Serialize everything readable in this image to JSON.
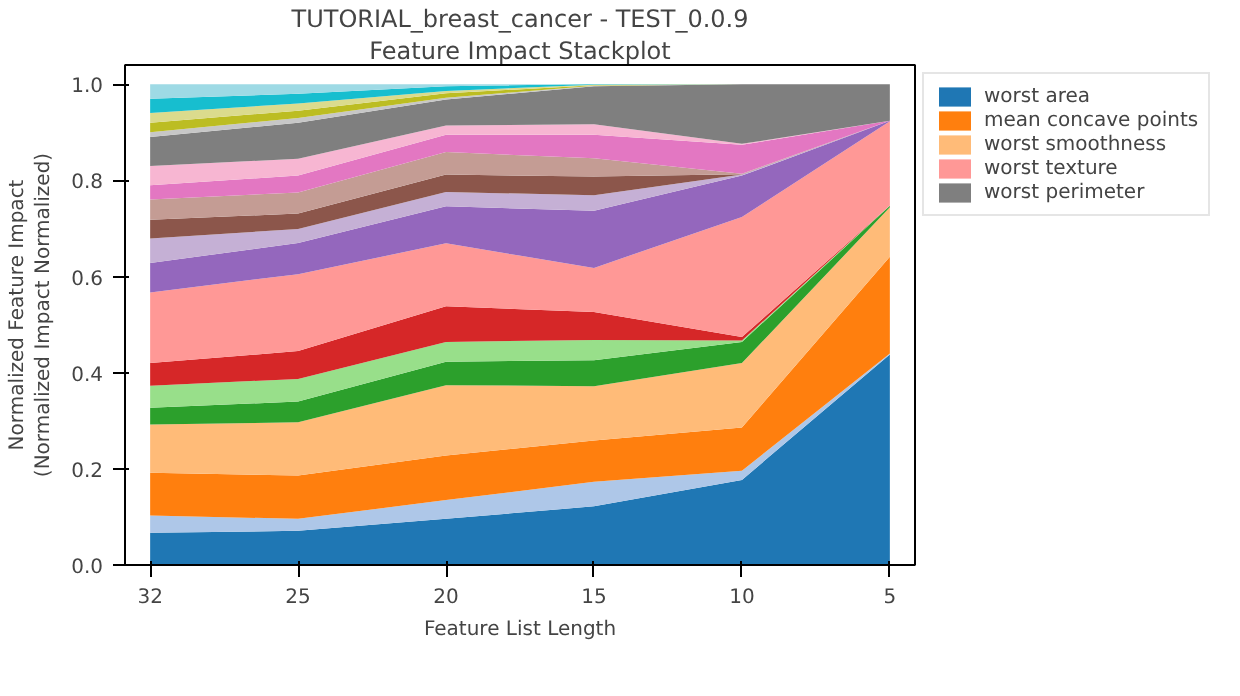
{
  "chart_data": {
    "type": "area",
    "stacked": true,
    "title": "TUTORIAL_breast_cancer - TEST_0.0.9",
    "subtitle": "Feature Impact Stackplot",
    "xlabel": "Feature List Length",
    "ylabel": "Normalized Feature Impact\n(Normalized Impact Normalized)",
    "categories": [
      "32",
      "25",
      "20",
      "15",
      "10",
      "5"
    ],
    "ylim": [
      0,
      1.04
    ],
    "yticks": [
      {
        "value": 0,
        "label": "0.0"
      },
      {
        "value": 0.2,
        "label": "0.2"
      },
      {
        "value": 0.4,
        "label": "0.4"
      },
      {
        "value": 0.6,
        "label": "0.6"
      },
      {
        "value": 0.8,
        "label": "0.8"
      },
      {
        "value": 1,
        "label": "1.0"
      }
    ],
    "grid": false,
    "legend": "right",
    "series": [
      {
        "name": "worst area",
        "color": "#1f77b4",
        "values": [
          0.067,
          0.071,
          0.096,
          0.122,
          0.177,
          0.438
        ]
      },
      {
        "color": "#aec7e8",
        "values": [
          0.036,
          0.025,
          0.039,
          0.051,
          0.019,
          0.002
        ]
      },
      {
        "name": "mean concave points",
        "color": "#ff7f0e",
        "values": [
          0.089,
          0.09,
          0.093,
          0.086,
          0.09,
          0.201
        ]
      },
      {
        "name": "worst smoothness",
        "color": "#ffbb78",
        "values": [
          0.1,
          0.111,
          0.146,
          0.113,
          0.134,
          0.103
        ]
      },
      {
        "color": "#2ca02c",
        "values": [
          0.035,
          0.043,
          0.049,
          0.054,
          0.044,
          0.003
        ]
      },
      {
        "color": "#98df8a",
        "values": [
          0.046,
          0.047,
          0.041,
          0.042,
          0.003,
          0.001
        ]
      },
      {
        "color": "#d62728",
        "values": [
          0.047,
          0.058,
          0.074,
          0.058,
          0.007,
          0.0
        ]
      },
      {
        "name": "worst texture",
        "color": "#ff9896",
        "values": [
          0.147,
          0.16,
          0.131,
          0.092,
          0.25,
          0.175
        ]
      },
      {
        "color": "#9467bd",
        "values": [
          0.061,
          0.065,
          0.077,
          0.119,
          0.086,
          0.001
        ]
      },
      {
        "color": "#c5b0d5",
        "values": [
          0.051,
          0.029,
          0.03,
          0.032,
          0.002,
          0.0
        ]
      },
      {
        "color": "#8c564b",
        "values": [
          0.039,
          0.032,
          0.036,
          0.039,
          0.001,
          0.0
        ]
      },
      {
        "color": "#c49c94",
        "values": [
          0.042,
          0.044,
          0.047,
          0.038,
          0.001,
          0.0
        ]
      },
      {
        "color": "#e377c2",
        "values": [
          0.03,
          0.035,
          0.036,
          0.049,
          0.06,
          0.0
        ]
      },
      {
        "color": "#f7b6d2",
        "values": [
          0.04,
          0.035,
          0.019,
          0.022,
          0.002,
          0.0
        ]
      },
      {
        "name": "worst perimeter",
        "color": "#7f7f7f",
        "values": [
          0.06,
          0.075,
          0.054,
          0.079,
          0.124,
          0.076
        ]
      },
      {
        "color": "#c7c7c7",
        "values": [
          0.01,
          0.01,
          0.004,
          0.001,
          0.0,
          0.0
        ]
      },
      {
        "color": "#bcbd22",
        "values": [
          0.02,
          0.015,
          0.009,
          0.001,
          0.0,
          0.0
        ]
      },
      {
        "color": "#dbdb8d",
        "values": [
          0.02,
          0.015,
          0.005,
          0.001,
          0.0,
          0.0
        ]
      },
      {
        "color": "#17becf",
        "values": [
          0.03,
          0.02,
          0.01,
          0.001,
          0.0,
          0.0
        ]
      },
      {
        "color": "#9edae5",
        "values": [
          0.03,
          0.02,
          0.004,
          0.0,
          0.0,
          0.0
        ]
      }
    ]
  }
}
